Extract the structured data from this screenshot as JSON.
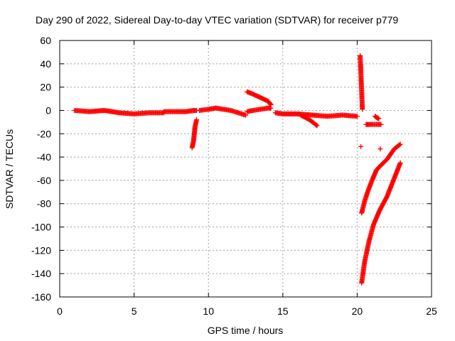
{
  "chart_data": {
    "type": "scatter",
    "title": "Day 290 of 2022, Sidereal Day-to-day VTEC variation (SDTVAR) for receiver p779",
    "xlabel": "GPS time / hours",
    "ylabel": "SDTVAR / TECUs",
    "xlim": [
      0,
      25
    ],
    "ylim": [
      -160,
      60
    ],
    "xticks": [
      0,
      5,
      10,
      15,
      20,
      25
    ],
    "yticks": [
      60,
      40,
      20,
      0,
      -20,
      -40,
      -60,
      -80,
      -100,
      -120,
      -140,
      -160
    ],
    "grid": true,
    "marker": "+",
    "color": "#ff0000",
    "series": [
      {
        "name": "SDTVAR",
        "segments": [
          {
            "x": [
              1.0,
              2.0,
              3.0,
              4.0,
              5.0,
              6.0,
              7.0
            ],
            "y": [
              0,
              -1,
              0,
              -2,
              -3,
              -2,
              -2
            ]
          },
          {
            "x": [
              7.0,
              8.0,
              8.5,
              9.0,
              9.2
            ],
            "y": [
              -1,
              -1,
              -1,
              0,
              0
            ]
          },
          {
            "x": [
              8.9,
              9.0,
              9.05,
              9.1,
              9.2
            ],
            "y": [
              -32,
              -26,
              -20,
              -14,
              -8
            ]
          },
          {
            "x": [
              9.4,
              10.0,
              10.5,
              11.0,
              11.5,
              12.0,
              12.5
            ],
            "y": [
              0,
              1,
              2,
              1,
              0,
              -2,
              -4
            ]
          },
          {
            "x": [
              12.6,
              13.0,
              13.5,
              14.0,
              14.2
            ],
            "y": [
              16,
              14,
              11,
              8,
              5
            ]
          },
          {
            "x": [
              12.6,
              13.0,
              13.5,
              14.0,
              14.2
            ],
            "y": [
              -1,
              0,
              1,
              2,
              2
            ]
          },
          {
            "x": [
              14.5,
              15.0,
              16.0,
              17.0,
              18.0,
              19.0,
              20.0
            ],
            "y": [
              -2,
              -3,
              -3,
              -4,
              -5,
              -4,
              -5
            ]
          },
          {
            "x": [
              16.2,
              16.8,
              17.3
            ],
            "y": [
              -4,
              -8,
              -13
            ]
          },
          {
            "x": [
              20.2,
              20.25,
              20.3,
              20.35
            ],
            "y": [
              47,
              32,
              17,
              1
            ]
          },
          {
            "x": [
              20.25
            ],
            "y": [
              -31
            ]
          },
          {
            "x": [
              20.6,
              20.8,
              21.0,
              21.3,
              21.6
            ],
            "y": [
              -12,
              -12,
              -12,
              -12,
              -12
            ]
          },
          {
            "x": [
              21.2,
              21.3,
              21.45
            ],
            "y": [
              -5,
              -6,
              -7
            ]
          },
          {
            "x": [
              21.55
            ],
            "y": [
              -33
            ]
          },
          {
            "x": [
              20.3,
              20.5,
              20.7,
              21.0,
              21.3,
              21.6,
              22.0,
              22.5,
              22.9
            ],
            "y": [
              -88,
              -78,
              -70,
              -60,
              -51,
              -47,
              -42,
              -33,
              -29
            ]
          },
          {
            "x": [
              20.3,
              20.5,
              20.8,
              21.1,
              21.5,
              22.0,
              22.5,
              22.9
            ],
            "y": [
              -148,
              -130,
              -112,
              -98,
              -86,
              -74,
              -58,
              -45
            ]
          }
        ]
      }
    ]
  }
}
